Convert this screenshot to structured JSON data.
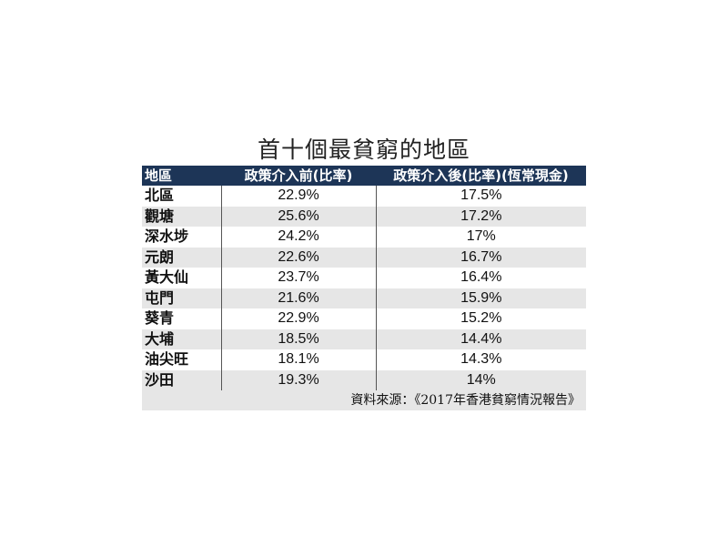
{
  "chart_data": {
    "type": "table",
    "title": "首十個最貧窮的地區",
    "columns": [
      "地區",
      "政策介入前(比率)",
      "政策介入後(比率)(恆常現金)"
    ],
    "rows": [
      {
        "district": "北區",
        "before": "22.9%",
        "after": "17.5%"
      },
      {
        "district": "觀塘",
        "before": "25.6%",
        "after": "17.2%"
      },
      {
        "district": "深水埗",
        "before": "24.2%",
        "after": "17%"
      },
      {
        "district": "元朗",
        "before": "22.6%",
        "after": "16.7%"
      },
      {
        "district": "黃大仙",
        "before": "23.7%",
        "after": "16.4%"
      },
      {
        "district": "屯門",
        "before": "21.6%",
        "after": "15.9%"
      },
      {
        "district": "葵青",
        "before": "22.9%",
        "after": "15.2%"
      },
      {
        "district": "大埔",
        "before": "18.5%",
        "after": "14.4%"
      },
      {
        "district": "油尖旺",
        "before": "18.1%",
        "after": "14.3%"
      },
      {
        "district": "沙田",
        "before": "19.3%",
        "after": "14%"
      }
    ],
    "source": "資料來源：《2017年香港貧窮情況報告》"
  },
  "colors": {
    "header_bg": "#1d3557",
    "header_text": "#ffffff",
    "stripe": "#e6e6e6"
  }
}
